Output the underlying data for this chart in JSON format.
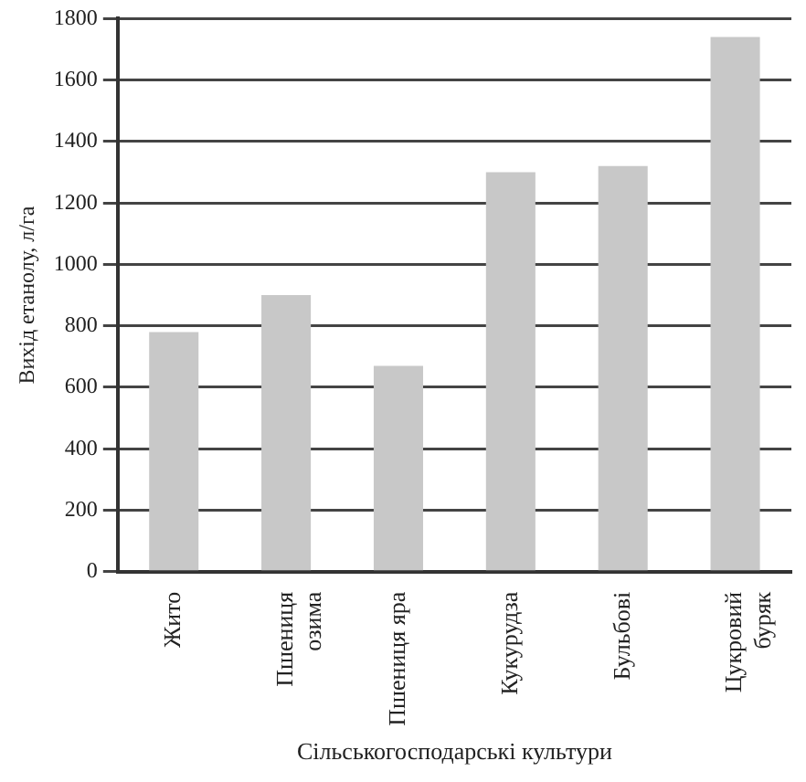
{
  "chart_data": {
    "type": "bar",
    "categories": [
      "Жито",
      "Пшениця\nозима",
      "Пшениця яра",
      "Кукурудза",
      "Бульбові",
      "Цукровий\nбуряк"
    ],
    "values": [
      780,
      900,
      670,
      1300,
      1320,
      1740
    ],
    "color": "#c8c8c8",
    "ylabel": "Вихід етанолу, л/га",
    "xlabel": "Сільськогосподарські культури",
    "ylim": [
      0,
      1800
    ],
    "yticks": [
      0,
      200,
      400,
      600,
      800,
      1000,
      1200,
      1400,
      1600,
      1800
    ],
    "grid": "y"
  }
}
